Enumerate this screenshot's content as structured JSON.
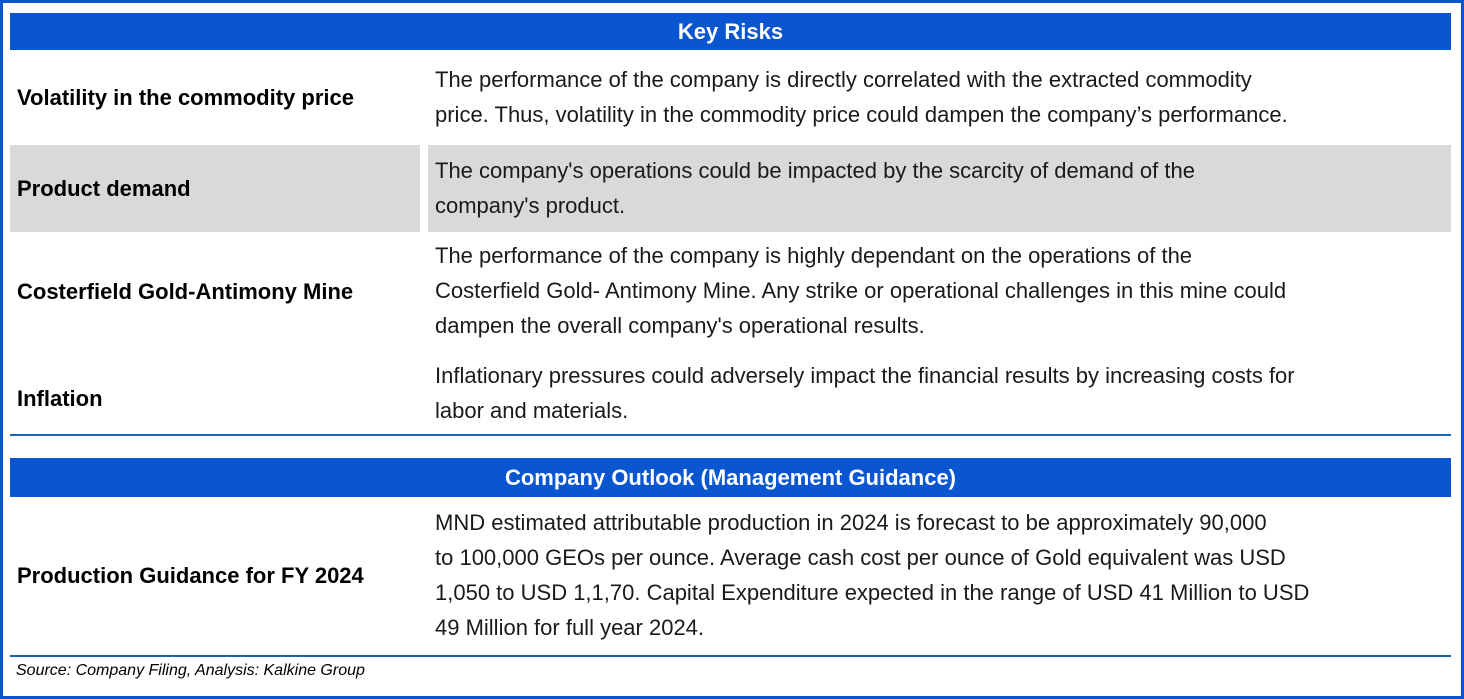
{
  "key_risks": {
    "title": "Key Risks",
    "rows": [
      {
        "label": "Volatility in the commodity price",
        "line1": "The performance of the company is directly correlated with the extracted commodity",
        "line2": "price. Thus, volatility in the commodity price could dampen the company’s performance."
      },
      {
        "label": "Product demand",
        "line1": "The company's operations could be impacted by the scarcity of demand of the",
        "line2": "company's product."
      },
      {
        "label": "Costerfield Gold-Antimony Mine",
        "line1": "The performance of the company is highly dependant on the operations of the",
        "line2": "Costerfield Gold- Antimony Mine. Any strike or operational challenges in this mine could",
        "line3": "dampen the overall company's operational results."
      },
      {
        "label": "Inflation",
        "line1": "Inflationary pressures could adversely impact the financial results by increasing costs for",
        "line2": "labor and materials."
      }
    ]
  },
  "outlook": {
    "title": "Company Outlook (Management Guidance)",
    "rows": [
      {
        "label": "Production Guidance for  FY 2024",
        "line1": "MND estimated attributable production in 2024 is forecast to be approximately 90,000",
        "line2": "to 100,000 GEOs per ounce. Average cash cost per ounce of Gold equivalent was USD",
        "line3": "1,050 to USD 1,1,70. Capital Expenditure expected in the range of USD 41 Million to USD",
        "line4": "49 Million for full year 2024."
      }
    ]
  },
  "source": "Source: Company Filing, Analysis: Kalkine Group",
  "colors": {
    "header_band": "#0a55d0",
    "shaded_row": "#d9d9d9",
    "rule": "#1565b8"
  }
}
